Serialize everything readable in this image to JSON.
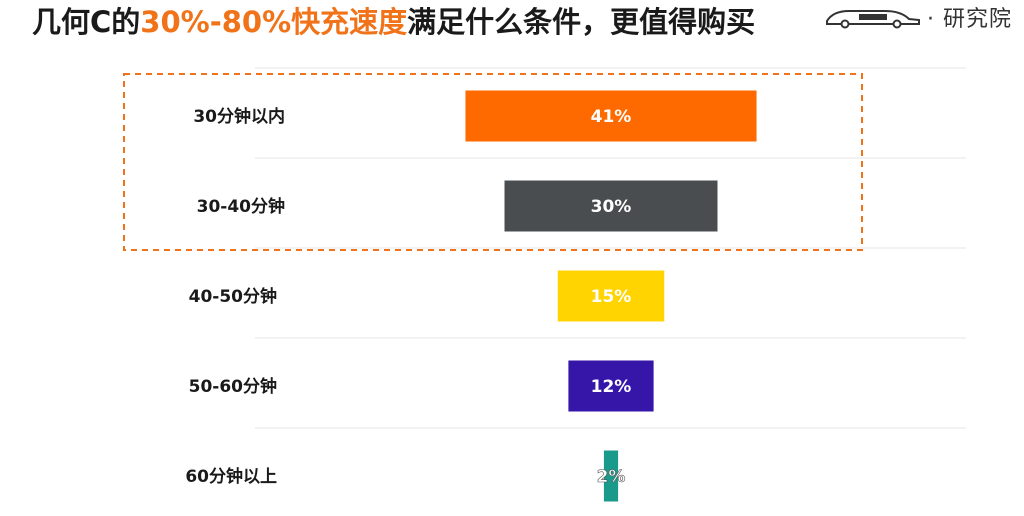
{
  "header": {
    "title_pre": "几何C的",
    "title_highlight": "30%-80%快充速度",
    "title_post": "满足什么条件，更值得购买",
    "logo_text": "· 研究院"
  },
  "colors": {
    "accent": "#f0731a",
    "highlight_box": "#f0731a"
  },
  "chart_data": {
    "type": "bar",
    "orientation": "horizontal",
    "categories": [
      "30分钟以内",
      "30-40分钟",
      "40-50分钟",
      "50-60分钟",
      "60分钟以上"
    ],
    "values": [
      41,
      30,
      15,
      12,
      2
    ],
    "value_labels": [
      "41%",
      "30%",
      "15%",
      "12%",
      "2%"
    ],
    "colors": [
      "#ff6a00",
      "#4a4d50",
      "#ffd400",
      "#3516a8",
      "#1a9a8a"
    ],
    "highlighted_categories": [
      "30分钟以内",
      "30-40分钟"
    ],
    "grid": true
  }
}
